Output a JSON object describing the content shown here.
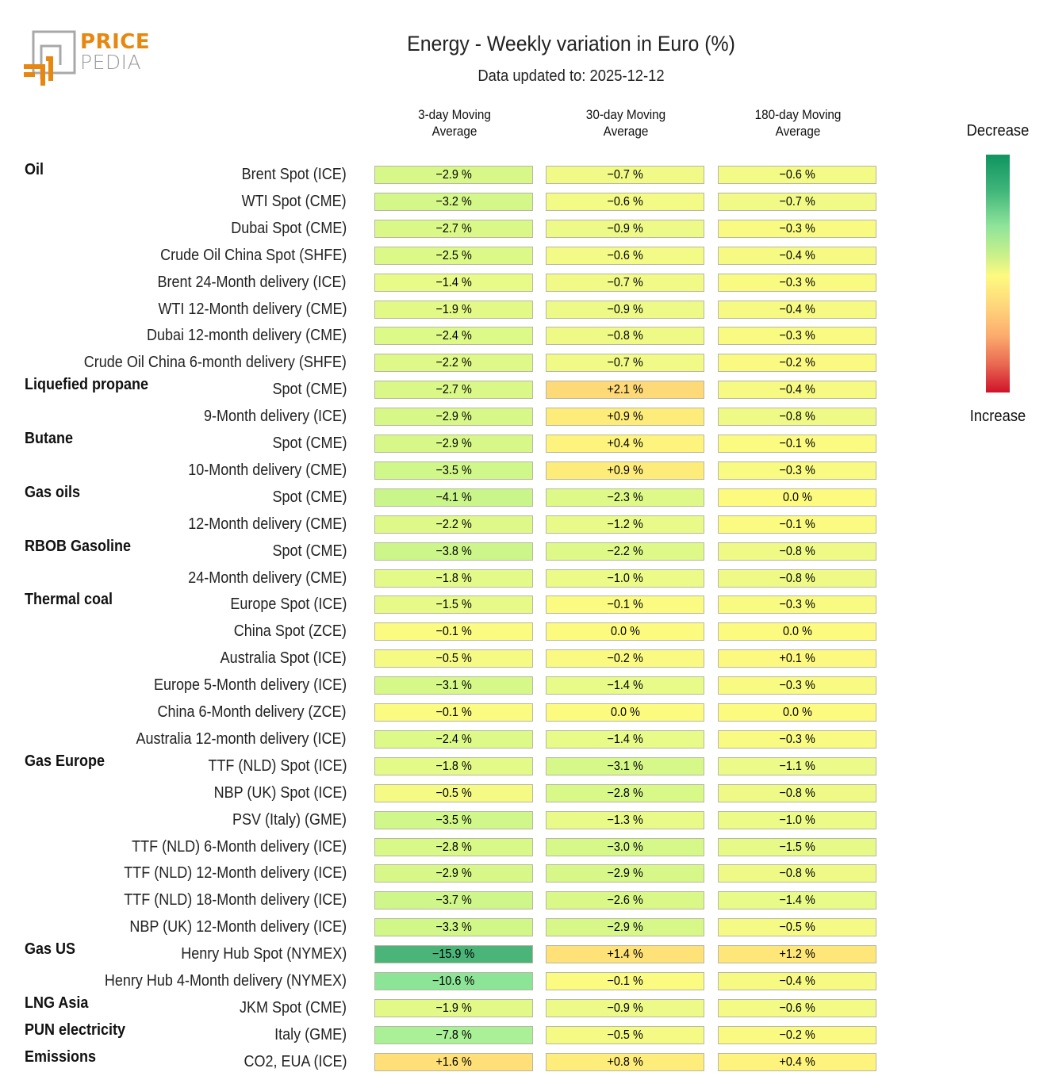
{
  "logo": {
    "word1": "PRICE",
    "word2": "PEDIA",
    "accent": "#e8870f",
    "gray": "#9a9a9a"
  },
  "header": {
    "title": "Energy - Weekly variation in Euro (%)",
    "subtitle": "Data updated to: 2025-12-12"
  },
  "legend": {
    "top_label": "Decrease",
    "bottom_label": "Increase"
  },
  "chart_data": {
    "type": "heatmap",
    "title": "Energy - Weekly variation in Euro (%)",
    "subtitle": "Data updated to: 2025-12-12",
    "columns": [
      {
        "line1": "3-day Moving",
        "line2": "Average"
      },
      {
        "line1": "30-day Moving",
        "line2": "Average"
      },
      {
        "line1": "180-day Moving",
        "line2": "Average"
      }
    ],
    "unit": "%",
    "color_scale": {
      "decrease_color": "#0f9460",
      "neutral_color": "#fdfa80",
      "increase_color": "#d0122a",
      "legend_top": "Decrease",
      "legend_bottom": "Increase"
    },
    "rows": [
      {
        "group": "Oil",
        "label": "Brent Spot (ICE)",
        "values": [
          -2.9,
          -0.7,
          -0.6
        ]
      },
      {
        "group": "",
        "label": "WTI Spot (CME)",
        "values": [
          -3.2,
          -0.6,
          -0.7
        ]
      },
      {
        "group": "",
        "label": "Dubai Spot (CME)",
        "values": [
          -2.7,
          -0.9,
          -0.3
        ]
      },
      {
        "group": "",
        "label": "Crude Oil China Spot (SHFE)",
        "values": [
          -2.5,
          -0.6,
          -0.4
        ]
      },
      {
        "group": "",
        "label": "Brent 24-Month delivery (ICE)",
        "values": [
          -1.4,
          -0.7,
          -0.3
        ]
      },
      {
        "group": "",
        "label": "WTI 12-Month delivery (CME)",
        "values": [
          -1.9,
          -0.9,
          -0.4
        ]
      },
      {
        "group": "",
        "label": "Dubai 12-month delivery (CME)",
        "values": [
          -2.4,
          -0.8,
          -0.3
        ]
      },
      {
        "group": "",
        "label": "Crude Oil China 6-month delivery (SHFE)",
        "values": [
          -2.2,
          -0.7,
          -0.2
        ]
      },
      {
        "group": "Liquefied propane",
        "label": "Spot (CME)",
        "values": [
          -2.7,
          2.1,
          -0.4
        ]
      },
      {
        "group": "",
        "label": "9-Month delivery (ICE)",
        "values": [
          -2.9,
          0.9,
          -0.8
        ]
      },
      {
        "group": "Butane",
        "label": "Spot (CME)",
        "values": [
          -2.9,
          0.4,
          -0.1
        ]
      },
      {
        "group": "",
        "label": "10-Month delivery (CME)",
        "values": [
          -3.5,
          0.9,
          -0.3
        ]
      },
      {
        "group": "Gas oils",
        "label": "Spot (CME)",
        "values": [
          -4.1,
          -2.3,
          0.0
        ]
      },
      {
        "group": "",
        "label": "12-Month delivery (CME)",
        "values": [
          -2.2,
          -1.2,
          -0.1
        ]
      },
      {
        "group": "RBOB Gasoline",
        "label": "Spot (CME)",
        "values": [
          -3.8,
          -2.2,
          -0.8
        ]
      },
      {
        "group": "",
        "label": "24-Month delivery (CME)",
        "values": [
          -1.8,
          -1.0,
          -0.8
        ]
      },
      {
        "group": "Thermal coal",
        "label": "Europe Spot (ICE)",
        "values": [
          -1.5,
          -0.1,
          -0.3
        ]
      },
      {
        "group": "",
        "label": "China Spot (ZCE)",
        "values": [
          -0.1,
          0.0,
          0.0
        ]
      },
      {
        "group": "",
        "label": "Australia Spot (ICE)",
        "values": [
          -0.5,
          -0.2,
          0.1
        ]
      },
      {
        "group": "",
        "label": "Europe 5-Month delivery (ICE)",
        "values": [
          -3.1,
          -1.4,
          -0.3
        ]
      },
      {
        "group": "",
        "label": "China 6-Month delivery (ZCE)",
        "values": [
          -0.1,
          0.0,
          0.0
        ]
      },
      {
        "group": "",
        "label": "Australia 12-month delivery (ICE)",
        "values": [
          -2.4,
          -1.4,
          -0.3
        ]
      },
      {
        "group": "Gas Europe",
        "label": "TTF (NLD) Spot (ICE)",
        "values": [
          -1.8,
          -3.1,
          -1.1
        ]
      },
      {
        "group": "",
        "label": "NBP (UK) Spot (ICE)",
        "values": [
          -0.5,
          -2.8,
          -0.8
        ]
      },
      {
        "group": "",
        "label": "PSV (Italy) (GME)",
        "values": [
          -3.5,
          -1.3,
          -1.0
        ]
      },
      {
        "group": "",
        "label": "TTF (NLD) 6-Month delivery (ICE)",
        "values": [
          -2.8,
          -3.0,
          -1.5
        ]
      },
      {
        "group": "",
        "label": "TTF (NLD) 12-Month delivery (ICE)",
        "values": [
          -2.9,
          -2.9,
          -0.8
        ]
      },
      {
        "group": "",
        "label": "TTF (NLD) 18-Month delivery (ICE)",
        "values": [
          -3.7,
          -2.6,
          -1.4
        ]
      },
      {
        "group": "",
        "label": "NBP (UK) 12-Month delivery (ICE)",
        "values": [
          -3.3,
          -2.9,
          -0.5
        ]
      },
      {
        "group": "Gas US",
        "label": "Henry Hub Spot (NYMEX)",
        "values": [
          -15.9,
          1.4,
          1.2
        ]
      },
      {
        "group": "",
        "label": "Henry Hub 4-Month delivery (NYMEX)",
        "values": [
          -10.6,
          -0.1,
          -0.4
        ]
      },
      {
        "group": "LNG Asia",
        "label": "JKM Spot (CME)",
        "values": [
          -1.9,
          -0.9,
          -0.6
        ]
      },
      {
        "group": "PUN electricity",
        "label": "Italy (GME)",
        "values": [
          -7.8,
          -0.5,
          -0.2
        ]
      },
      {
        "group": "Emissions",
        "label": "CO2, EUA (ICE)",
        "values": [
          1.6,
          0.8,
          0.4
        ]
      }
    ]
  }
}
